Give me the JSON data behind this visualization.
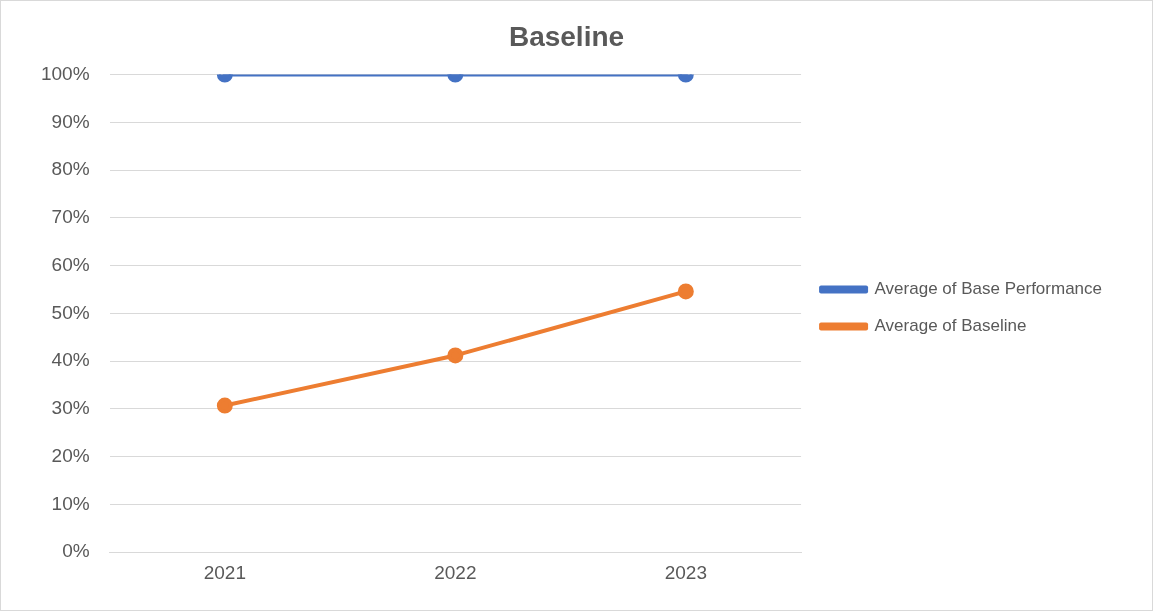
{
  "chart_data": {
    "type": "line",
    "title": "Baseline",
    "categories": [
      "2021",
      "2022",
      "2023"
    ],
    "series": [
      {
        "name": "Average of Base Performance",
        "color": "#4472c4",
        "values": [
          100,
          100,
          100
        ]
      },
      {
        "name": "Average of Baseline",
        "color": "#ed7d31",
        "values": [
          30.7,
          41.2,
          54.6
        ]
      }
    ],
    "ylim": [
      0,
      100
    ],
    "yticks": [
      {
        "value": 0,
        "label": "0%"
      },
      {
        "value": 10,
        "label": "10%"
      },
      {
        "value": 20,
        "label": "20%"
      },
      {
        "value": 30,
        "label": "30%"
      },
      {
        "value": 40,
        "label": "40%"
      },
      {
        "value": 50,
        "label": "50%"
      },
      {
        "value": 60,
        "label": "60%"
      },
      {
        "value": 70,
        "label": "70%"
      },
      {
        "value": 80,
        "label": "80%"
      },
      {
        "value": 90,
        "label": "90%"
      },
      {
        "value": 100,
        "label": "100%"
      }
    ],
    "grid": "y",
    "legend": "right",
    "marker": "circle",
    "line_style": "solid"
  }
}
